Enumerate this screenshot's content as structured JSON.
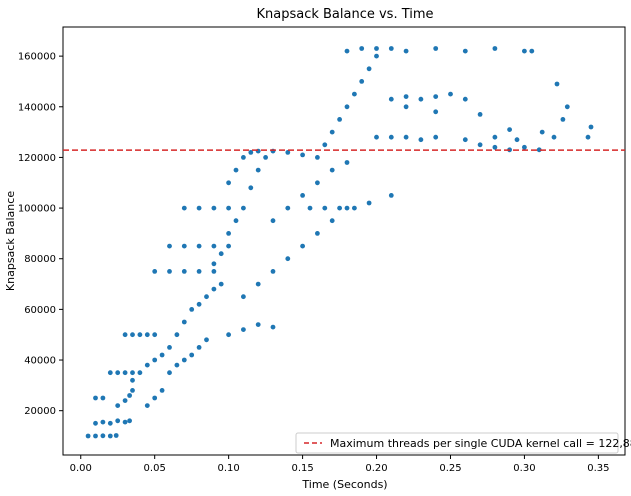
{
  "chart_data": {
    "type": "scatter",
    "title": "Knapsack Balance vs. Time",
    "xlabel": "Time (Seconds)",
    "ylabel": "Knapsack Balance",
    "xlim": [
      -0.012,
      0.368
    ],
    "ylim": [
      2500,
      171500
    ],
    "xticks": [
      0.0,
      0.05,
      0.1,
      0.15,
      0.2,
      0.25,
      0.3,
      0.35
    ],
    "xtick_labels": [
      "0.00",
      "0.05",
      "0.10",
      "0.15",
      "0.20",
      "0.25",
      "0.30",
      "0.35"
    ],
    "yticks": [
      20000,
      40000,
      60000,
      80000,
      100000,
      120000,
      140000,
      160000
    ],
    "ytick_labels": [
      "20000",
      "40000",
      "60000",
      "80000",
      "100000",
      "120000",
      "140000",
      "160000"
    ],
    "grid": false,
    "legend_position": "lower-right",
    "series": [
      {
        "kind": "scatter",
        "color": "#1f77b4",
        "points": [
          [
            0.005,
            10000
          ],
          [
            0.01,
            10000
          ],
          [
            0.015,
            10100
          ],
          [
            0.02,
            10000
          ],
          [
            0.024,
            10200
          ],
          [
            0.01,
            15000
          ],
          [
            0.015,
            15500
          ],
          [
            0.02,
            15000
          ],
          [
            0.025,
            16000
          ],
          [
            0.03,
            15500
          ],
          [
            0.033,
            16000
          ],
          [
            0.01,
            25000
          ],
          [
            0.015,
            25000
          ],
          [
            0.025,
            22000
          ],
          [
            0.03,
            24000
          ],
          [
            0.033,
            26000
          ],
          [
            0.035,
            28000
          ],
          [
            0.02,
            35000
          ],
          [
            0.025,
            35000
          ],
          [
            0.03,
            35000
          ],
          [
            0.035,
            35000
          ],
          [
            0.045,
            22000
          ],
          [
            0.05,
            25000
          ],
          [
            0.055,
            28000
          ],
          [
            0.035,
            32000
          ],
          [
            0.04,
            35000
          ],
          [
            0.045,
            38000
          ],
          [
            0.05,
            40000
          ],
          [
            0.055,
            42000
          ],
          [
            0.06,
            45000
          ],
          [
            0.065,
            50000
          ],
          [
            0.03,
            50000
          ],
          [
            0.035,
            50000
          ],
          [
            0.04,
            50000
          ],
          [
            0.045,
            50000
          ],
          [
            0.05,
            50000
          ],
          [
            0.06,
            35000
          ],
          [
            0.065,
            38000
          ],
          [
            0.07,
            40000
          ],
          [
            0.075,
            42000
          ],
          [
            0.08,
            45000
          ],
          [
            0.085,
            48000
          ],
          [
            0.07,
            55000
          ],
          [
            0.075,
            60000
          ],
          [
            0.08,
            62000
          ],
          [
            0.085,
            65000
          ],
          [
            0.09,
            68000
          ],
          [
            0.095,
            70000
          ],
          [
            0.1,
            50000
          ],
          [
            0.11,
            52000
          ],
          [
            0.12,
            54000
          ],
          [
            0.13,
            53000
          ],
          [
            0.05,
            75000
          ],
          [
            0.06,
            75000
          ],
          [
            0.07,
            75000
          ],
          [
            0.08,
            75000
          ],
          [
            0.09,
            75000
          ],
          [
            0.06,
            85000
          ],
          [
            0.07,
            85000
          ],
          [
            0.08,
            85000
          ],
          [
            0.09,
            85000
          ],
          [
            0.1,
            85000
          ],
          [
            0.07,
            100000
          ],
          [
            0.08,
            100000
          ],
          [
            0.09,
            100000
          ],
          [
            0.1,
            100000
          ],
          [
            0.09,
            78000
          ],
          [
            0.095,
            82000
          ],
          [
            0.1,
            90000
          ],
          [
            0.105,
            95000
          ],
          [
            0.11,
            100000
          ],
          [
            0.115,
            108000
          ],
          [
            0.12,
            115000
          ],
          [
            0.125,
            120000
          ],
          [
            0.1,
            110000
          ],
          [
            0.105,
            115000
          ],
          [
            0.11,
            120000
          ],
          [
            0.115,
            122000
          ],
          [
            0.12,
            122500
          ],
          [
            0.13,
            122500
          ],
          [
            0.14,
            122000
          ],
          [
            0.15,
            121000
          ],
          [
            0.11,
            65000
          ],
          [
            0.12,
            70000
          ],
          [
            0.13,
            75000
          ],
          [
            0.14,
            80000
          ],
          [
            0.15,
            85000
          ],
          [
            0.16,
            90000
          ],
          [
            0.17,
            95000
          ],
          [
            0.18,
            100000
          ],
          [
            0.13,
            95000
          ],
          [
            0.14,
            100000
          ],
          [
            0.15,
            105000
          ],
          [
            0.16,
            110000
          ],
          [
            0.17,
            115000
          ],
          [
            0.18,
            118000
          ],
          [
            0.155,
            100000
          ],
          [
            0.165,
            100000
          ],
          [
            0.175,
            100000
          ],
          [
            0.185,
            100000
          ],
          [
            0.195,
            102000
          ],
          [
            0.21,
            105000
          ],
          [
            0.16,
            120000
          ],
          [
            0.165,
            125000
          ],
          [
            0.17,
            130000
          ],
          [
            0.175,
            135000
          ],
          [
            0.18,
            140000
          ],
          [
            0.185,
            145000
          ],
          [
            0.19,
            150000
          ],
          [
            0.195,
            155000
          ],
          [
            0.2,
            160000
          ],
          [
            0.18,
            162000
          ],
          [
            0.19,
            163000
          ],
          [
            0.2,
            163000
          ],
          [
            0.21,
            163000
          ],
          [
            0.22,
            162000
          ],
          [
            0.24,
            163000
          ],
          [
            0.26,
            162000
          ],
          [
            0.28,
            163000
          ],
          [
            0.3,
            162000
          ],
          [
            0.305,
            162000
          ],
          [
            0.2,
            128000
          ],
          [
            0.21,
            128000
          ],
          [
            0.22,
            128000
          ],
          [
            0.23,
            127000
          ],
          [
            0.24,
            128000
          ],
          [
            0.26,
            127000
          ],
          [
            0.28,
            128000
          ],
          [
            0.295,
            127000
          ],
          [
            0.21,
            143000
          ],
          [
            0.22,
            144000
          ],
          [
            0.23,
            143000
          ],
          [
            0.24,
            144000
          ],
          [
            0.25,
            145000
          ],
          [
            0.26,
            143000
          ],
          [
            0.27,
            125000
          ],
          [
            0.28,
            124000
          ],
          [
            0.29,
            123000
          ],
          [
            0.3,
            124000
          ],
          [
            0.31,
            123000
          ],
          [
            0.22,
            140000
          ],
          [
            0.24,
            138000
          ],
          [
            0.27,
            137000
          ],
          [
            0.29,
            131000
          ],
          [
            0.312,
            130000
          ],
          [
            0.32,
            128000
          ],
          [
            0.326,
            135000
          ],
          [
            0.329,
            140000
          ],
          [
            0.322,
            149000
          ],
          [
            0.343,
            128000
          ],
          [
            0.345,
            132000
          ]
        ]
      },
      {
        "kind": "hline",
        "name": "Maximum threads per single CUDA kernel call = 122,880",
        "y": 122880,
        "color": "#d62728",
        "style": "dashed"
      }
    ]
  }
}
